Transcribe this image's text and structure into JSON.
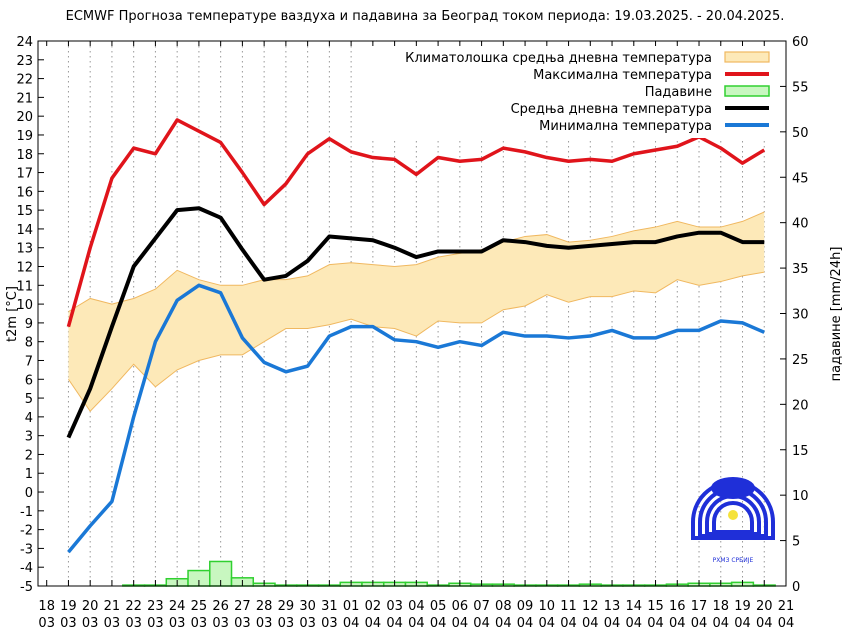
{
  "chart_data": {
    "type": "line",
    "title": "ECMWF Прогноза температуре ваздуха и падавина за Београд током периода: 19.03.2025. - 20.04.2025.",
    "ylabel": "t2m [°C]",
    "y2label": "падавине [mm/24h]",
    "ylim": [
      -5,
      24
    ],
    "y2lim": [
      0,
      60
    ],
    "yticks": [
      -5,
      -4,
      -3,
      -2,
      -1,
      0,
      1,
      2,
      3,
      4,
      5,
      6,
      7,
      8,
      9,
      10,
      11,
      12,
      13,
      14,
      15,
      16,
      17,
      18,
      19,
      20,
      21,
      22,
      23,
      24
    ],
    "y2ticks": [
      0,
      5,
      10,
      15,
      20,
      25,
      30,
      35,
      40,
      45,
      50,
      55,
      60
    ],
    "x_days": [
      "18",
      "19",
      "20",
      "21",
      "22",
      "23",
      "24",
      "25",
      "26",
      "27",
      "28",
      "29",
      "30",
      "31",
      "01",
      "02",
      "03",
      "04",
      "05",
      "06",
      "07",
      "08",
      "09",
      "10",
      "11",
      "12",
      "13",
      "14",
      "15",
      "16",
      "17",
      "18",
      "19",
      "20",
      "21"
    ],
    "x_months": [
      "03",
      "03",
      "03",
      "03",
      "03",
      "03",
      "03",
      "03",
      "03",
      "03",
      "03",
      "03",
      "03",
      "03",
      "04",
      "04",
      "04",
      "04",
      "04",
      "04",
      "04",
      "04",
      "04",
      "04",
      "04",
      "04",
      "04",
      "04",
      "04",
      "04",
      "04",
      "04",
      "04",
      "04",
      "04"
    ],
    "legend_position": "top-right",
    "grid": "vertical dotted",
    "series": [
      {
        "name": "Климатолошка средња дневна температура",
        "type": "band",
        "color": "#fde9b8",
        "edge": "#f0b860",
        "upper": [
          9.6,
          10.3,
          10.0,
          10.3,
          10.8,
          11.8,
          11.3,
          11.0,
          11.0,
          11.3,
          11.3,
          11.5,
          12.1,
          12.2,
          12.1,
          12.0,
          12.1,
          12.5,
          12.7,
          12.9,
          13.3,
          13.6,
          13.7,
          13.3,
          13.4,
          13.6,
          13.9,
          14.1,
          14.4,
          14.1,
          14.1,
          14.4,
          14.9
        ],
        "lower": [
          6.0,
          4.3,
          5.5,
          6.8,
          5.6,
          6.5,
          7.0,
          7.3,
          7.3,
          8.0,
          8.7,
          8.7,
          8.9,
          9.2,
          8.8,
          8.7,
          8.3,
          9.1,
          9.0,
          9.0,
          9.7,
          9.9,
          10.5,
          10.1,
          10.4,
          10.4,
          10.7,
          10.6,
          11.3,
          11.0,
          11.2,
          11.5,
          11.7
        ]
      },
      {
        "name": "Максимална температура",
        "type": "line",
        "color": "#e0141b",
        "values": [
          8.8,
          13.0,
          16.7,
          18.3,
          18.0,
          19.8,
          19.2,
          18.6,
          17.0,
          15.3,
          16.4,
          18.0,
          18.8,
          18.1,
          17.8,
          17.7,
          16.9,
          17.8,
          17.6,
          17.7,
          18.3,
          18.1,
          17.8,
          17.6,
          17.7,
          17.6,
          18.0,
          18.2,
          18.4,
          18.9,
          18.3,
          17.5,
          18.2
        ]
      },
      {
        "name": "Падавине",
        "type": "bar",
        "color": "#c8f7c0",
        "edge": "#30d030",
        "values": [
          0,
          0,
          0,
          0.1,
          0.1,
          0.8,
          1.7,
          2.7,
          0.9,
          0.3,
          0.1,
          0.1,
          0.1,
          0.4,
          0.4,
          0.4,
          0.4,
          0.1,
          0.3,
          0.2,
          0.2,
          0.1,
          0.1,
          0.1,
          0.2,
          0.1,
          0.1,
          0.1,
          0.2,
          0.3,
          0.3,
          0.4,
          0.1
        ]
      },
      {
        "name": "Средња дневна температура",
        "type": "line",
        "color": "#000000",
        "values": [
          2.9,
          5.5,
          8.8,
          12.0,
          13.5,
          15.0,
          15.1,
          14.6,
          12.9,
          11.3,
          11.5,
          12.3,
          13.6,
          13.5,
          13.4,
          13.0,
          12.5,
          12.8,
          12.8,
          12.8,
          13.4,
          13.3,
          13.1,
          13.0,
          13.1,
          13.2,
          13.3,
          13.3,
          13.6,
          13.8,
          13.8,
          13.3,
          13.3
        ]
      },
      {
        "name": "Минимална температура",
        "type": "line",
        "color": "#1a78d6",
        "values": [
          -3.2,
          -1.8,
          -0.5,
          4.0,
          8.0,
          10.2,
          11.0,
          10.6,
          8.2,
          6.9,
          6.4,
          6.7,
          8.3,
          8.8,
          8.8,
          8.1,
          8.0,
          7.7,
          8.0,
          7.8,
          8.5,
          8.3,
          8.3,
          8.2,
          8.3,
          8.6,
          8.2,
          8.2,
          8.6,
          8.6,
          9.1,
          9.0,
          8.5
        ]
      }
    ],
    "series_start_index": 1
  },
  "logo": {
    "text": "РХМЗ СРБИЈЕ"
  }
}
